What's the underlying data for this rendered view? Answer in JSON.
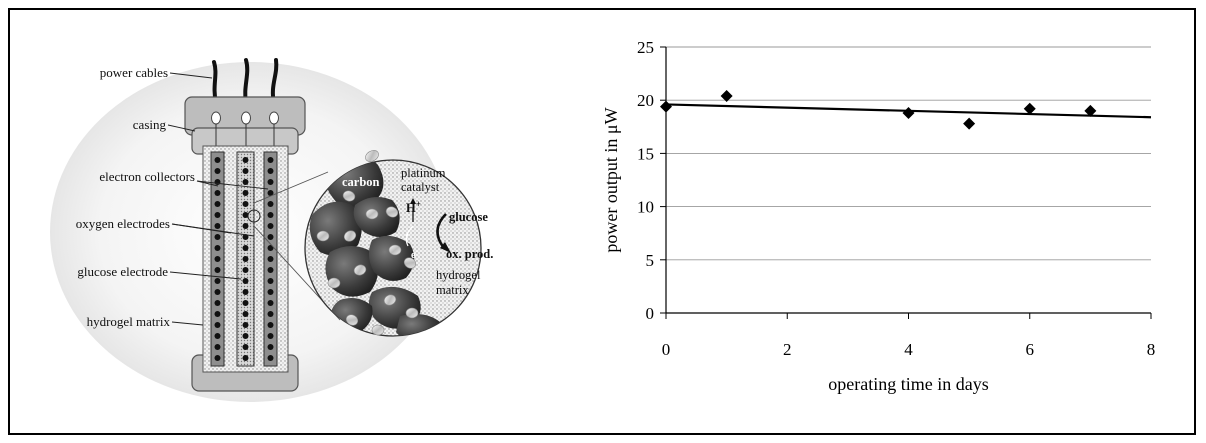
{
  "diagram": {
    "labels": {
      "power_cables": "power cables",
      "casing": "casing",
      "electron_collectors": "electron collectors",
      "oxygen_electrodes": "oxygen electrodes",
      "glucose_electrode": "glucose electrode",
      "hydrogel_matrix": "hydrogel matrix"
    },
    "inset": {
      "platinum": "platinum",
      "catalyst": "catalyst",
      "carbon": "carbon",
      "proton": "H",
      "proton_sup": "+",
      "glucose": "glucose",
      "ox_prod": "ox. prod.",
      "electron": "e",
      "electron_sup": "-",
      "hydrogel": "hydrogel",
      "matrix": "matrix"
    }
  },
  "chart_data": {
    "type": "scatter",
    "xlabel": "operating time in days",
    "ylabel": "power output in μW",
    "xlim": [
      0,
      8
    ],
    "ylim": [
      0,
      25
    ],
    "xticks": [
      0,
      2,
      4,
      6,
      8
    ],
    "yticks": [
      0,
      5,
      10,
      15,
      20,
      25
    ],
    "grid": "horizontal",
    "points": [
      {
        "x": 0,
        "y": 19.4
      },
      {
        "x": 1,
        "y": 20.4
      },
      {
        "x": 4,
        "y": 18.8
      },
      {
        "x": 5,
        "y": 17.8
      },
      {
        "x": 6,
        "y": 19.2
      },
      {
        "x": 7,
        "y": 19.0
      }
    ],
    "trendline": {
      "x": [
        0,
        8
      ],
      "y": [
        19.6,
        18.4
      ]
    }
  }
}
